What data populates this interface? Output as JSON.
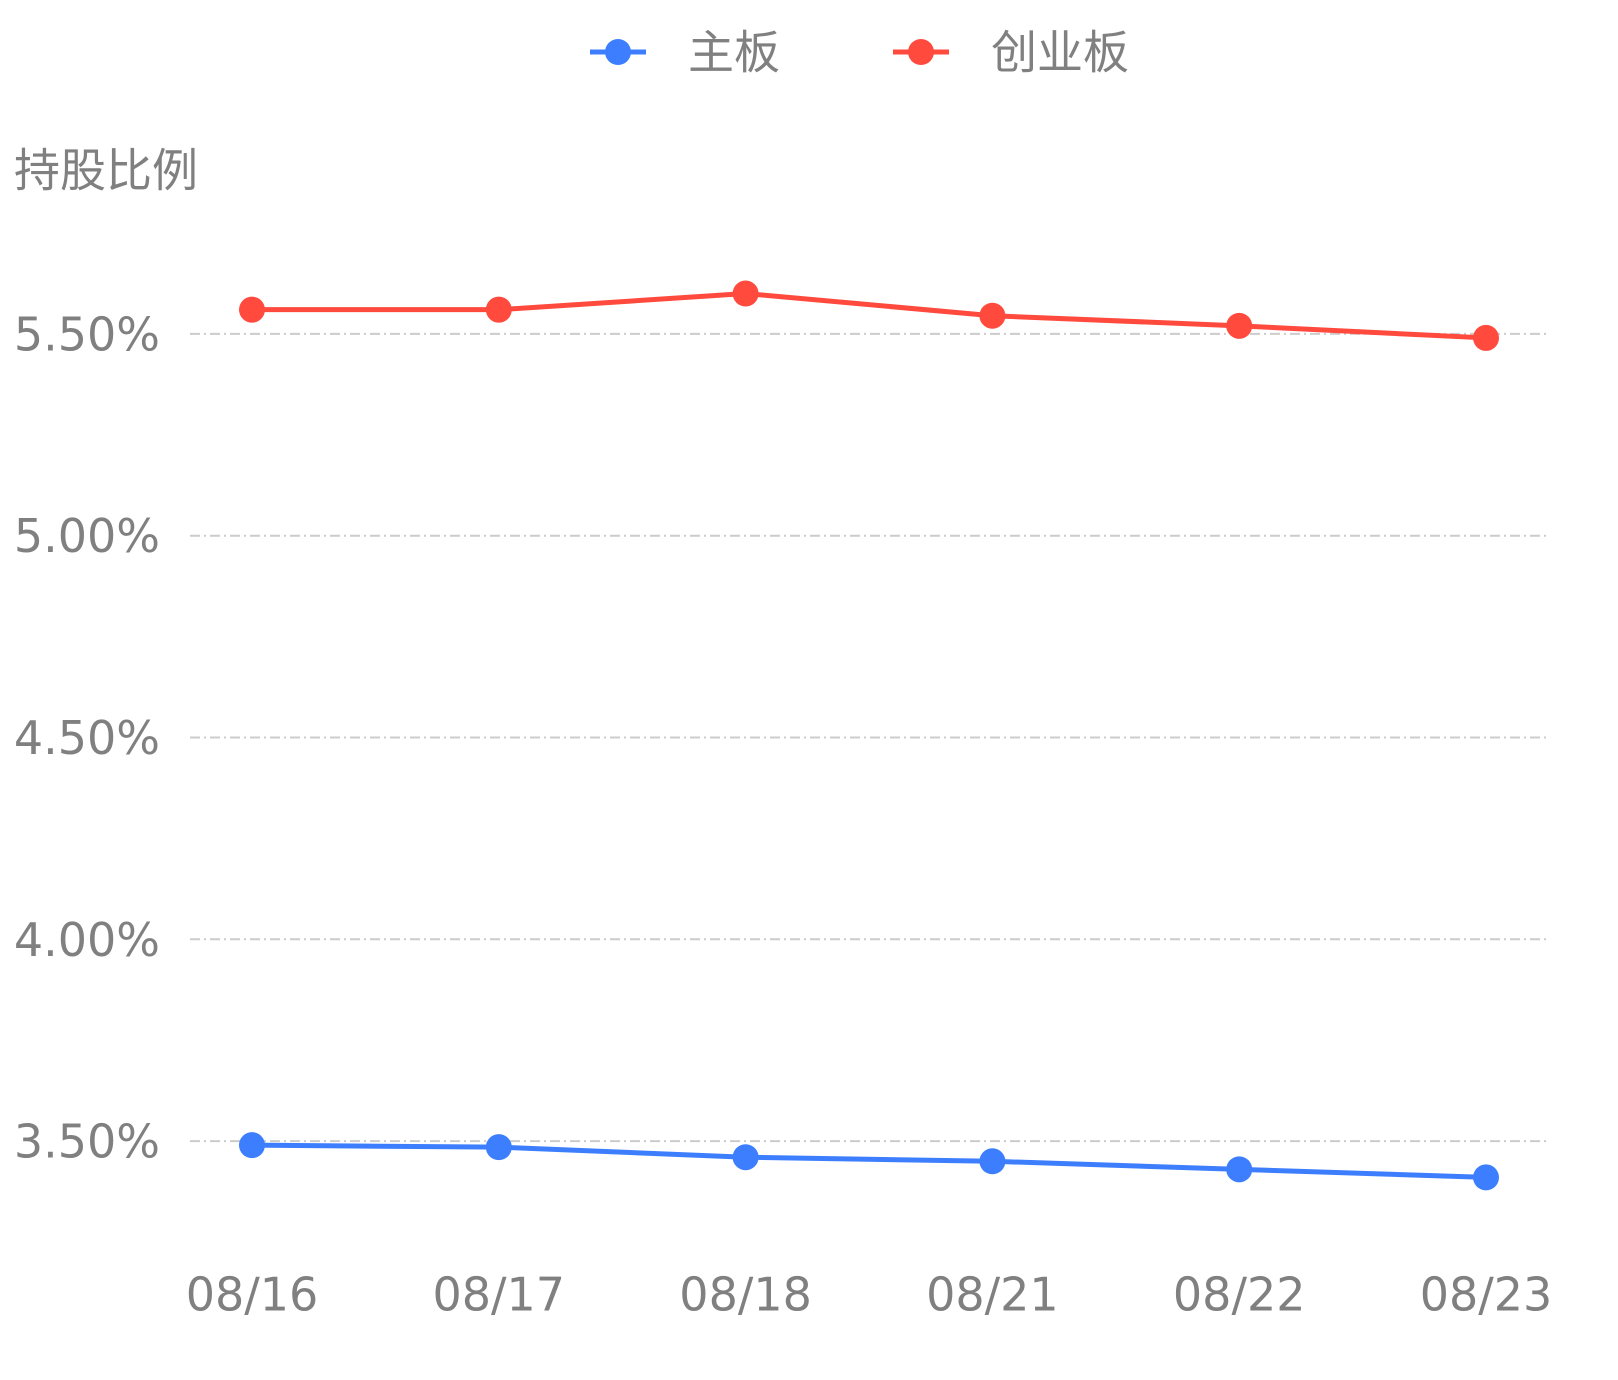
{
  "chart_data": {
    "type": "line",
    "y_label": "持股比例",
    "categories": [
      "08/16",
      "08/17",
      "08/18",
      "08/21",
      "08/22",
      "08/23"
    ],
    "series": [
      {
        "name": "主板",
        "color": "#3d7eff",
        "values": [
          3.49,
          3.485,
          3.46,
          3.45,
          3.43,
          3.41
        ]
      },
      {
        "name": "创业板",
        "color": "#ff4a3d",
        "values": [
          5.56,
          5.56,
          5.6,
          5.545,
          5.52,
          5.49
        ]
      }
    ],
    "ylim": [
      3.25,
      5.75
    ],
    "yticks": [
      {
        "value": 3.5,
        "label": "3.50%"
      },
      {
        "value": 4,
        "label": "4.00%"
      },
      {
        "value": 4.5,
        "label": "4.50%"
      },
      {
        "value": 5,
        "label": "5.00%"
      },
      {
        "value": 5.5,
        "label": "5.50%"
      }
    ],
    "grid": true,
    "legend": "top"
  }
}
